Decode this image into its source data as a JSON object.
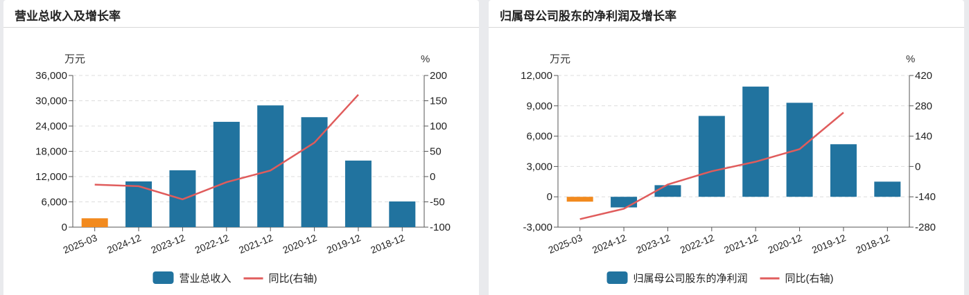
{
  "panels": [
    {
      "title": "营业总收入及增长率"
    },
    {
      "title": "归属母公司股东的净利润及增长率"
    }
  ],
  "chart_data": [
    {
      "type": "bar",
      "title": "营业总收入及增长率",
      "categories": [
        "2025-03",
        "2024-12",
        "2023-12",
        "2022-12",
        "2021-12",
        "2020-12",
        "2019-12",
        "2018-12"
      ],
      "left_axis": {
        "unit": "万元",
        "ticks": [
          "36,000",
          "30,000",
          "24,000",
          "18,000",
          "12,000",
          "6,000",
          "0"
        ],
        "ylim": [
          0,
          36000
        ]
      },
      "right_axis": {
        "unit": "%",
        "ticks": [
          "200",
          "150",
          "100",
          "50",
          "0",
          "-50",
          "-100"
        ],
        "ylim": [
          -100,
          200
        ]
      },
      "series": [
        {
          "name": "营业总收入",
          "type": "bar",
          "axis": "left",
          "color": "#21739f",
          "highlight_color": "#f28a1e",
          "values": [
            2100,
            10850,
            13500,
            25000,
            28900,
            26100,
            15800,
            6100
          ]
        },
        {
          "name": "同比(右轴)",
          "type": "line",
          "axis": "right",
          "color": "#e05c5c",
          "values": [
            -16,
            -19,
            -45,
            -11,
            12,
            67,
            162,
            null
          ]
        }
      ],
      "legend": [
        "营业总收入",
        "同比(右轴)"
      ],
      "grid": true
    },
    {
      "type": "bar",
      "title": "归属母公司股东的净利润及增长率",
      "categories": [
        "2025-03",
        "2024-12",
        "2023-12",
        "2022-12",
        "2021-12",
        "2020-12",
        "2019-12",
        "2018-12"
      ],
      "left_axis": {
        "unit": "万元",
        "ticks": [
          "12,000",
          "9,000",
          "6,000",
          "3,000",
          "0",
          "-3,000"
        ],
        "ylim": [
          -3000,
          12000
        ]
      },
      "right_axis": {
        "unit": "%",
        "ticks": [
          "420",
          "280",
          "140",
          "0",
          "-140",
          "-280"
        ],
        "ylim": [
          -280,
          420
        ]
      },
      "series": [
        {
          "name": "归属母公司股东的净利润",
          "type": "bar",
          "axis": "left",
          "color": "#21739f",
          "highlight_color": "#f28a1e",
          "values": [
            -480,
            -1050,
            1150,
            8000,
            10900,
            9300,
            5200,
            1500
          ]
        },
        {
          "name": "同比(右轴)",
          "type": "line",
          "axis": "right",
          "color": "#e05c5c",
          "values": [
            -243,
            -195,
            -83,
            -22,
            22,
            80,
            249,
            null
          ]
        }
      ],
      "legend": [
        "归属母公司股东的净利润",
        "同比(右轴)"
      ],
      "grid": true
    }
  ]
}
